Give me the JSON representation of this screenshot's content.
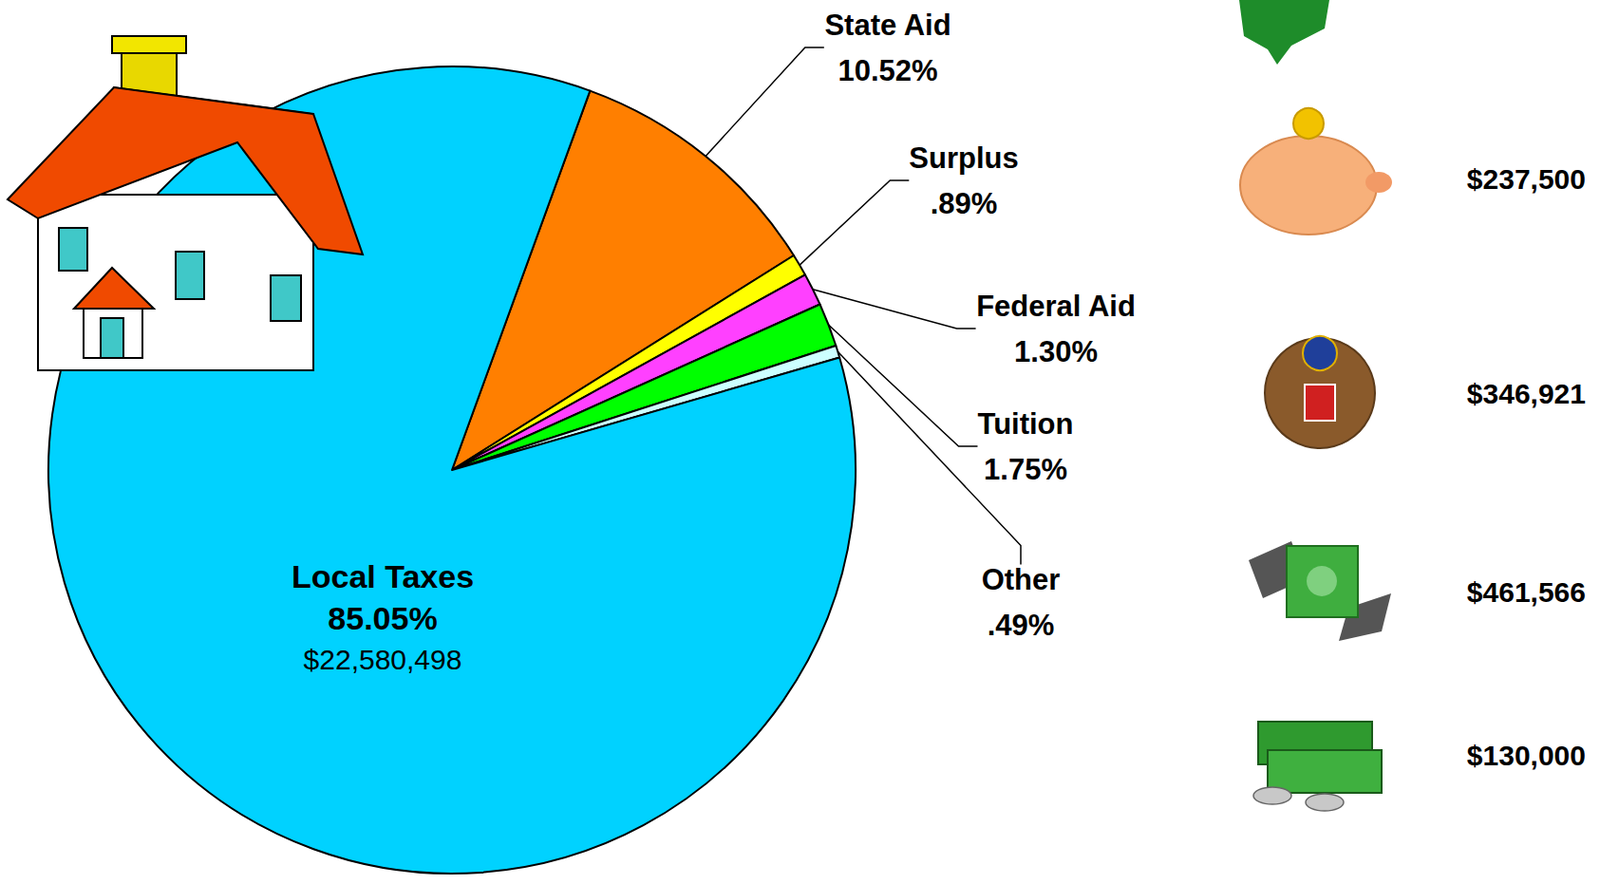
{
  "chart_data": {
    "type": "pie",
    "categories": [
      "State Aid",
      "Surplus",
      "Federal Aid",
      "Tuition",
      "Other",
      "Local Taxes"
    ],
    "values": [
      10.52,
      0.89,
      1.3,
      1.75,
      0.49,
      85.05
    ],
    "value_labels": [
      "10.52%",
      ".89%",
      "1.30%",
      "1.75%",
      ".49%",
      "85.05%"
    ],
    "amounts": [
      null,
      237500,
      346921,
      461566,
      130000,
      22580498
    ],
    "amount_labels": [
      null,
      "$237,500",
      "$346,921",
      "$461,566",
      "$130,000",
      "$22,580,498"
    ],
    "colors": [
      "#ff7f00",
      "#ffff00",
      "#ff40ff",
      "#00ff00",
      "#ccffff",
      "#00d2ff"
    ],
    "data_labels": true
  }
}
